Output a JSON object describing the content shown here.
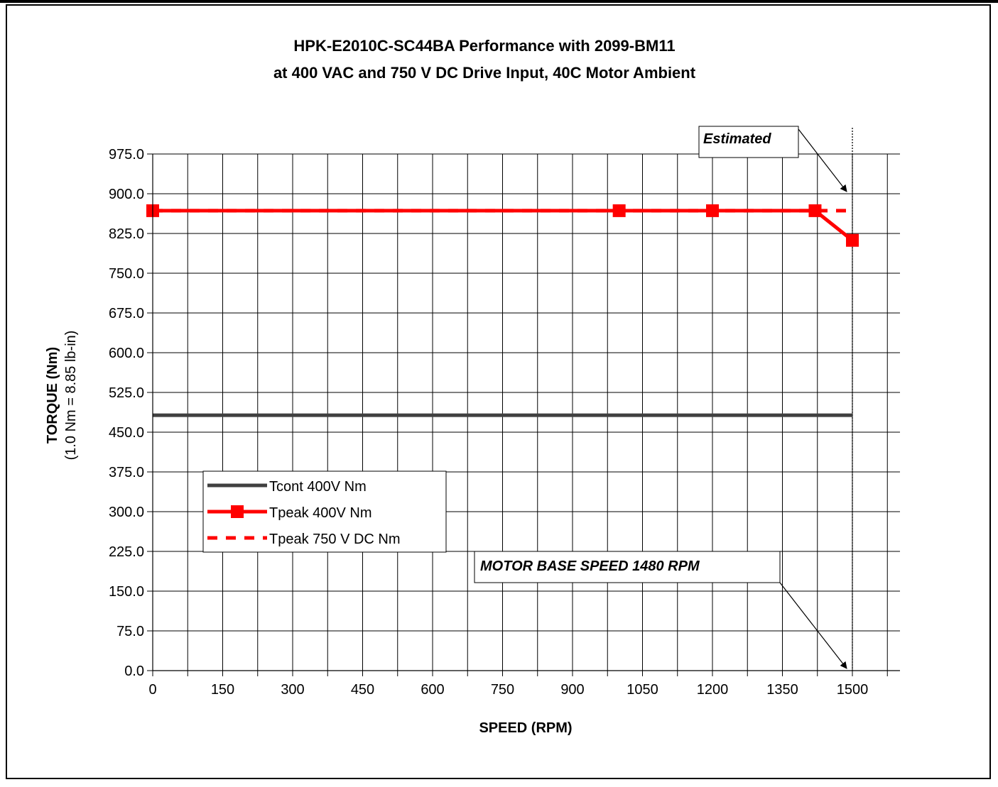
{
  "chart_data": {
    "type": "line",
    "title": "HPK-E2010C-SC44BA  Performance with 2099-BM11",
    "subtitle": "at 400 VAC and 750 V DC Drive Input, 40C Motor Ambient",
    "xlabel": "SPEED (RPM)",
    "ylabel": "TORQUE (Nm)",
    "ylabel_sub": "(1.0 Nm = 8.85 lb-in)",
    "xlim": [
      0,
      1500
    ],
    "ylim": [
      0,
      975
    ],
    "xticks": [
      0,
      150,
      300,
      450,
      600,
      750,
      900,
      1050,
      1200,
      1350,
      1500
    ],
    "yticks": [
      0,
      75,
      150,
      225,
      300,
      375,
      450,
      525,
      600,
      675,
      750,
      825,
      900,
      975
    ],
    "xtick_labels": [
      "0",
      "150",
      "300",
      "450",
      "600",
      "750",
      "900",
      "1050",
      "1200",
      "1350",
      "1500"
    ],
    "ytick_labels": [
      "0.0",
      "75.0",
      "150.0",
      "225.0",
      "300.0",
      "375.0",
      "450.0",
      "525.0",
      "600.0",
      "675.0",
      "750.0",
      "825.0",
      "900.0",
      "975.0"
    ],
    "grid": true,
    "legend_position": "lower-left",
    "series": [
      {
        "name": "Tcont 400V Nm",
        "color": "#404040",
        "style": "solid",
        "marker": "none",
        "x": [
          0,
          1500
        ],
        "y": [
          482,
          482
        ]
      },
      {
        "name": "Tpeak 400V Nm",
        "color": "#ff0000",
        "style": "solid",
        "marker": "square",
        "x": [
          0,
          1000,
          1200,
          1420,
          1500
        ],
        "y": [
          868,
          868,
          868,
          868,
          812
        ]
      },
      {
        "name": "Tpeak 750 V DC Nm",
        "color": "#ff0000",
        "style": "dashed",
        "marker": "none",
        "x": [
          0,
          1420,
          1500
        ],
        "y": [
          868,
          868,
          868
        ]
      }
    ],
    "annotations": [
      {
        "text": "Estimated",
        "arrow_to": [
          1500,
          900
        ]
      },
      {
        "text": "MOTOR BASE SPEED  1480 RPM",
        "arrow_to": [
          1500,
          0
        ]
      }
    ],
    "reference_line_x": 1500
  }
}
